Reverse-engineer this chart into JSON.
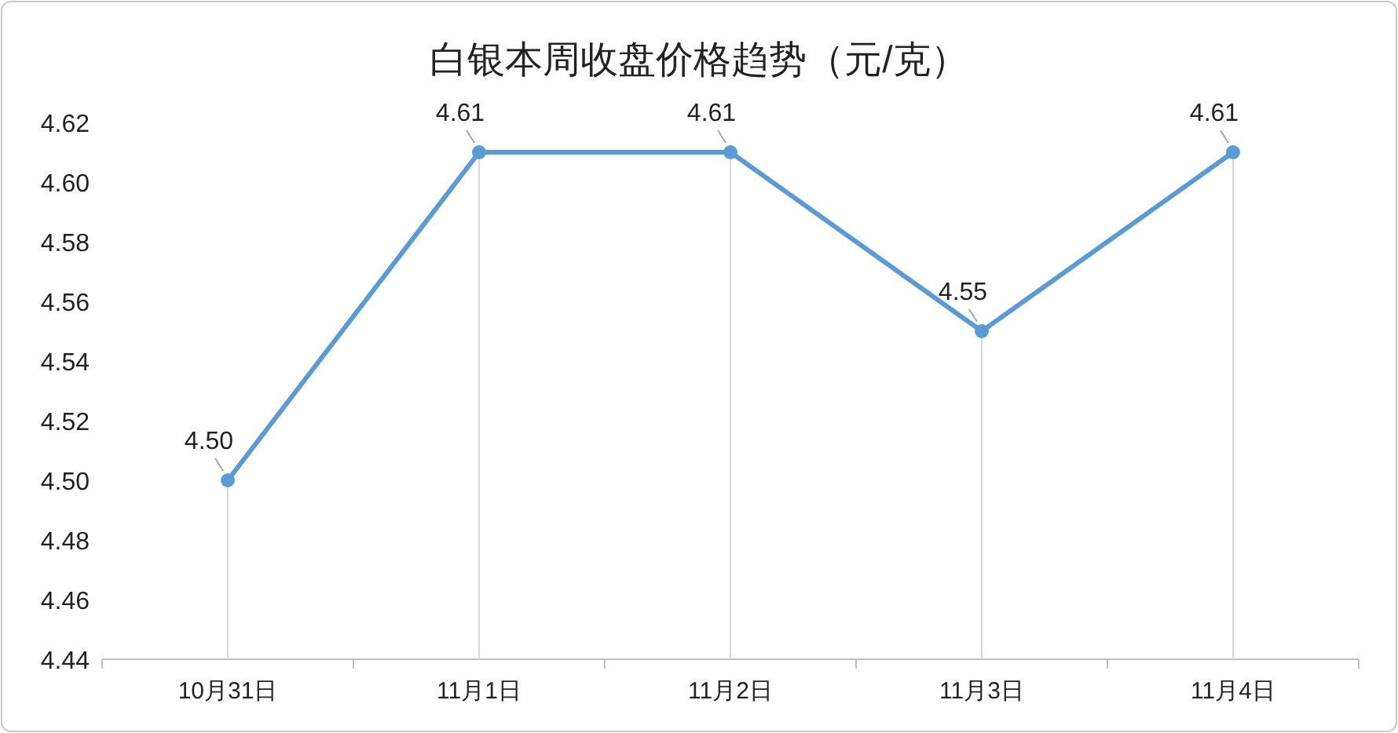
{
  "chart_data": {
    "type": "line",
    "title": "白银本周收盘价格趋势（元/克）",
    "categories": [
      "10月31日",
      "11月1日",
      "11月2日",
      "11月3日",
      "11月4日"
    ],
    "series": [
      {
        "color": "#5b9bd5",
        "values": [
          4.5,
          4.61,
          4.61,
          4.55,
          4.61
        ],
        "value_labels": [
          "4.50",
          "4.61",
          "4.61",
          "4.55",
          "4.61"
        ]
      }
    ],
    "ylim": [
      4.44,
      4.62
    ],
    "yticks": [
      {
        "value": 4.44,
        "label": "4.44"
      },
      {
        "value": 4.46,
        "label": "4.46"
      },
      {
        "value": 4.48,
        "label": "4.48"
      },
      {
        "value": 4.5,
        "label": "4.50"
      },
      {
        "value": 4.52,
        "label": "4.52"
      },
      {
        "value": 4.54,
        "label": "4.54"
      },
      {
        "value": 4.56,
        "label": "4.56"
      },
      {
        "value": 4.58,
        "label": "4.58"
      },
      {
        "value": 4.6,
        "label": "4.60"
      },
      {
        "value": 4.62,
        "label": "4.62"
      }
    ],
    "grid": "x",
    "marker": "circle",
    "line_style": "solid"
  }
}
